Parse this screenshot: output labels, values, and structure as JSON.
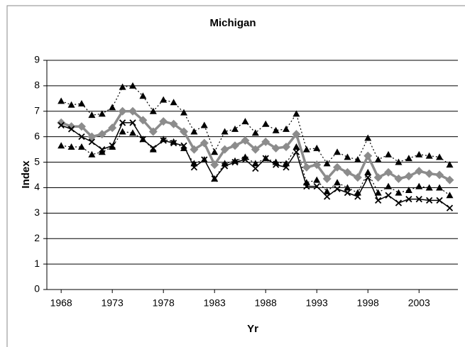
{
  "chart_data": {
    "type": "line",
    "title": "Michigan",
    "x_label": "Yr",
    "y_label": "Index",
    "x": [
      1968,
      1969,
      1970,
      1971,
      1972,
      1973,
      1974,
      1975,
      1976,
      1977,
      1978,
      1979,
      1980,
      1981,
      1982,
      1983,
      1984,
      1985,
      1986,
      1987,
      1988,
      1989,
      1990,
      1991,
      1992,
      1993,
      1994,
      1995,
      1996,
      1997,
      1998,
      1999,
      2000,
      2001,
      2002,
      2003,
      2004,
      2005,
      2006
    ],
    "series": [
      {
        "color": "#000000",
        "marker": "triangle",
        "line_style": "dotted",
        "line_width": 1.2,
        "values": [
          7.4,
          7.25,
          7.3,
          6.85,
          6.9,
          7.15,
          7.95,
          8.0,
          7.6,
          7.0,
          7.45,
          7.35,
          6.95,
          6.2,
          6.45,
          5.4,
          6.2,
          6.3,
          6.6,
          6.15,
          6.5,
          6.25,
          6.3,
          6.9,
          5.5,
          5.55,
          4.95,
          5.4,
          5.2,
          5.1,
          5.95,
          5.1,
          5.3,
          5.0,
          5.15,
          5.3,
          5.25,
          5.2,
          4.9
        ]
      },
      {
        "color": "#8c8c8c",
        "marker": "diamond",
        "line_style": "solid",
        "line_width": 3.5,
        "values": [
          6.55,
          6.4,
          6.4,
          6.0,
          6.1,
          6.35,
          7.0,
          7.0,
          6.65,
          6.2,
          6.6,
          6.5,
          6.2,
          5.5,
          5.75,
          4.9,
          5.5,
          5.65,
          5.85,
          5.5,
          5.8,
          5.55,
          5.6,
          6.1,
          4.8,
          4.9,
          4.35,
          4.8,
          4.6,
          4.4,
          5.25,
          4.4,
          4.6,
          4.35,
          4.45,
          4.65,
          4.55,
          4.5,
          4.3
        ]
      },
      {
        "color": "#000000",
        "marker": "triangle",
        "line_style": "dotted",
        "line_width": 1.2,
        "values": [
          5.65,
          5.6,
          5.6,
          5.3,
          5.4,
          5.6,
          6.2,
          6.15,
          5.9,
          5.5,
          5.9,
          5.8,
          5.55,
          4.95,
          5.1,
          4.35,
          4.95,
          5.05,
          5.2,
          4.95,
          5.15,
          5.0,
          4.95,
          5.6,
          4.2,
          4.3,
          3.85,
          4.2,
          4.0,
          3.8,
          4.6,
          3.8,
          4.05,
          3.8,
          3.9,
          4.05,
          4.0,
          4.0,
          3.7
        ]
      },
      {
        "color": "#000000",
        "marker": "x",
        "line_style": "solid",
        "line_width": 1.5,
        "values": [
          6.45,
          6.3,
          6.0,
          5.8,
          5.5,
          5.65,
          6.55,
          6.55,
          5.9,
          5.55,
          5.85,
          5.75,
          5.65,
          4.8,
          5.1,
          4.35,
          4.85,
          5.0,
          5.1,
          4.75,
          5.15,
          4.9,
          4.8,
          5.4,
          4.05,
          4.05,
          3.65,
          3.95,
          3.8,
          3.65,
          4.4,
          3.5,
          3.7,
          3.4,
          3.55,
          3.55,
          3.5,
          3.5,
          3.2
        ]
      }
    ],
    "xlim": [
      1966.6,
      2006.8
    ],
    "xticks": [
      1968,
      1973,
      1978,
      1983,
      1988,
      1993,
      1998,
      2003
    ],
    "ylim": [
      0,
      9
    ],
    "yticks": [
      0,
      1,
      2,
      3,
      4,
      5,
      6,
      7,
      8,
      9
    ],
    "grid": true
  }
}
